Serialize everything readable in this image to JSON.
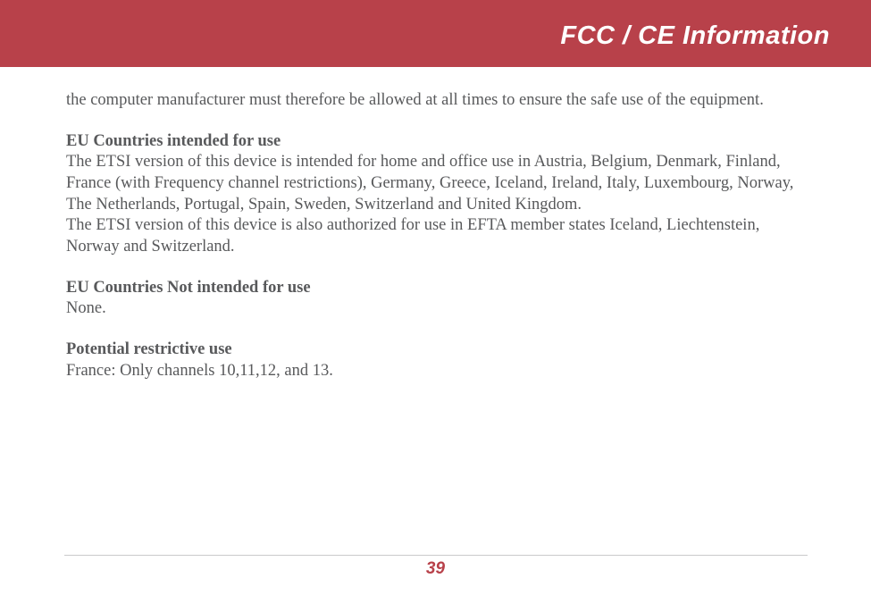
{
  "header": {
    "title": "FCC / CE Information"
  },
  "content": {
    "intro": "the computer manufacturer must therefore be allowed at all times to ensure the safe use of the equipment.",
    "sections": [
      {
        "heading": "EU Countries intended for use",
        "body1": "The ETSI version of this device is intended for home and office use in Austria, Belgium, Denmark, Finland, France (with Frequency channel restrictions), Germany, Greece, Iceland, Ireland, Italy, Luxembourg, Norway, The Netherlands, Portugal, Spain, Sweden, Switzerland and United Kingdom.",
        "body2": "The ETSI version of this device is also authorized for use in EFTA member states Iceland, Liechtenstein, Norway and Switzerland."
      },
      {
        "heading": "EU Countries Not intended for use",
        "body1": "None."
      },
      {
        "heading": "Potential restrictive use",
        "body1": "France: Only channels 10,11,12, and 13."
      }
    ]
  },
  "footer": {
    "page_number": "39"
  },
  "colors": {
    "header_bg": "#b8414a",
    "header_text": "#ffffff",
    "body_text": "#58595b",
    "accent": "#b8414a",
    "rule": "#c9cacb"
  },
  "typography": {
    "header_fontsize": 29,
    "body_fontsize": 18.5,
    "pagenum_fontsize": 19
  }
}
